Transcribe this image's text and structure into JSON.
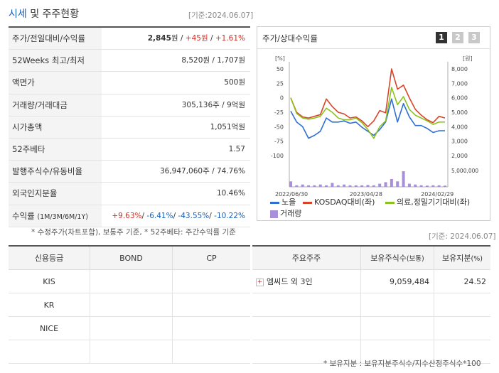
{
  "header": {
    "title_a": "시세",
    "title_b": "및 주주현황",
    "date": "[기준:2024.06.07]"
  },
  "summary": [
    {
      "label": "주가/전일대비/수익률",
      "parts": [
        {
          "t": "2,845",
          "c": "bold"
        },
        {
          "t": "원 / ",
          "c": ""
        },
        {
          "t": "+45원",
          "c": "red"
        },
        {
          "t": " / ",
          "c": ""
        },
        {
          "t": "+1.61%",
          "c": "red"
        }
      ]
    },
    {
      "label": "52Weeks 최고/최저",
      "parts": [
        {
          "t": "8,520원 / 1,707원",
          "c": ""
        }
      ]
    },
    {
      "label": "액면가",
      "parts": [
        {
          "t": "500원",
          "c": ""
        }
      ]
    },
    {
      "label": "거래량/거래대금",
      "parts": [
        {
          "t": "305,136주 / 9억원",
          "c": ""
        }
      ]
    },
    {
      "label": "시가총액",
      "parts": [
        {
          "t": "1,051억원",
          "c": ""
        }
      ]
    },
    {
      "label": "52주베타",
      "parts": [
        {
          "t": "1.57",
          "c": ""
        }
      ]
    },
    {
      "label": "발행주식수/유동비율",
      "parts": [
        {
          "t": "36,947,060주 / 74.76%",
          "c": ""
        }
      ]
    },
    {
      "label": "외국인지분율",
      "parts": [
        {
          "t": "10.46%",
          "c": ""
        }
      ]
    },
    {
      "label": "수익률",
      "label_small": "(1M/3M/6M/1Y)",
      "parts": [
        {
          "t": "+9.63%",
          "c": "red"
        },
        {
          "t": "/ ",
          "c": ""
        },
        {
          "t": "-6.41%",
          "c": "blue2"
        },
        {
          "t": "/ ",
          "c": ""
        },
        {
          "t": "-43.55%",
          "c": "blue2"
        },
        {
          "t": "/ ",
          "c": ""
        },
        {
          "t": "-10.22%",
          "c": "blue2"
        }
      ]
    }
  ],
  "summary_note": "* 수정주가(차트포함), 보통주 기준, * 52주베타: 주간수익률 기준",
  "chart_panel": {
    "title": "주가/상대수익률",
    "tabs": [
      "1",
      "2",
      "3"
    ],
    "active_tab": 0
  },
  "chart_data": {
    "type": "line",
    "left_unit": "[%]",
    "right_unit": "[원]",
    "left_ticks": [
      50,
      25,
      0,
      -25,
      -50,
      -75,
      -100
    ],
    "right_ticks": [
      "8,000",
      "7,000",
      "6,000",
      "5,000",
      "4,000",
      "3,000",
      "2,000"
    ],
    "volume_tick": "5,000,000",
    "x_ticks": [
      "2022/06/30",
      "2023/04/28",
      "2024/02/29"
    ],
    "ylim": [
      -100,
      50
    ],
    "series": [
      {
        "name": "노을",
        "color": "#2f6fd0",
        "values": [
          -23,
          -42,
          -50,
          -70,
          -65,
          -58,
          -35,
          -42,
          -42,
          -40,
          -44,
          -42,
          -51,
          -58,
          -65,
          -55,
          -42,
          -2,
          -42,
          -10,
          -33,
          -48,
          -48,
          -53,
          -60,
          -57,
          -57
        ]
      },
      {
        "name": "KOSDAQ대비(좌)",
        "color": "#d6452a",
        "values": [
          0,
          -25,
          -33,
          -35,
          -32,
          -29,
          -2,
          -15,
          -25,
          -28,
          -35,
          -33,
          -40,
          -50,
          -40,
          -22,
          -26,
          50,
          15,
          22,
          0,
          -20,
          -30,
          -38,
          -43,
          -32,
          -35
        ]
      },
      {
        "name": "의료,정밀기기대비(좌)",
        "color": "#8cc21f",
        "values": [
          0,
          -27,
          -35,
          -37,
          -35,
          -32,
          -18,
          -25,
          -35,
          -38,
          -38,
          -35,
          -43,
          -55,
          -70,
          -50,
          -40,
          18,
          -12,
          2,
          -20,
          -30,
          -35,
          -40,
          -46,
          -42,
          -42
        ]
      }
    ],
    "volume_series": {
      "name": "거래량",
      "color": "#a98fd8",
      "values": [
        0.35,
        0.1,
        0.15,
        0.1,
        0.1,
        0.15,
        0.1,
        0.25,
        0.1,
        0.15,
        0.1,
        0.1,
        0.1,
        0.12,
        0.1,
        0.2,
        0.3,
        0.5,
        0.35,
        1.0,
        0.2,
        0.15,
        0.1,
        0.08,
        0.1,
        0.1,
        0.08
      ]
    }
  },
  "chart_date": "[기준: 2024.06.07]",
  "credit": {
    "headers": [
      "신용등급",
      "BOND",
      "CP"
    ],
    "rows": [
      [
        "KIS",
        "",
        ""
      ],
      [
        "KR",
        "",
        ""
      ],
      [
        "NICE",
        "",
        ""
      ],
      [
        "",
        "",
        ""
      ]
    ]
  },
  "holders": {
    "headers": [
      "주요주주",
      "보유주식수",
      "(보통)",
      "보유지분",
      "(%)"
    ],
    "rows": [
      {
        "name": "엠씨드 외 3인",
        "shares": "9,059,484",
        "pct": "24.52"
      }
    ],
    "footnote": "* 보유지분 : 보유지분주식수/지수산정주식수*100"
  }
}
